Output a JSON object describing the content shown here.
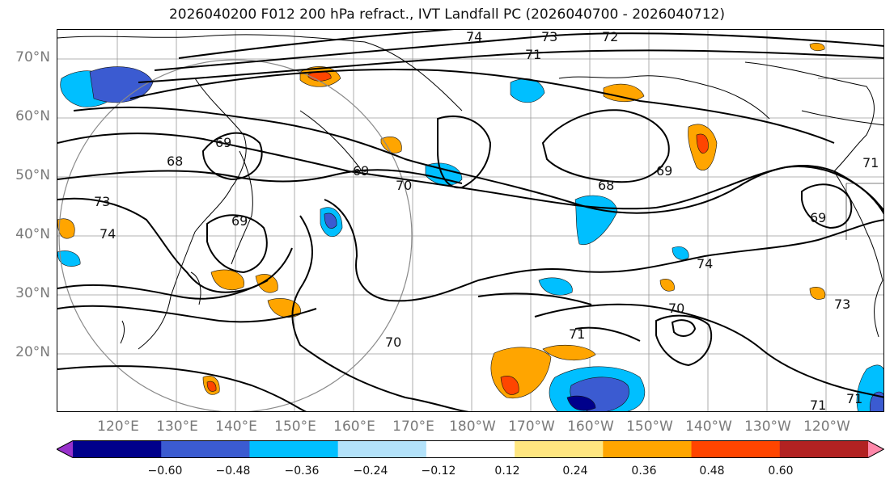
{
  "title": "2026040200 F012 200 hPa refract., IVT Landfall PC (2026040700 - 2026040712)",
  "lat_labels": [
    "70°N",
    "60°N",
    "50°N",
    "40°N",
    "30°N",
    "20°N"
  ],
  "lon_labels": [
    "120°E",
    "130°E",
    "140°E",
    "150°E",
    "160°E",
    "170°E",
    "180°W",
    "170°W",
    "160°W",
    "150°W",
    "140°W",
    "130°W",
    "120°W"
  ],
  "contour_labels": [
    "74",
    "73",
    "72",
    "71",
    "69",
    "70",
    "68",
    "69",
    "68",
    "69",
    "73",
    "74",
    "69",
    "74",
    "70",
    "71",
    "73",
    "71",
    "71",
    "70",
    "69",
    "71"
  ],
  "colorbar": {
    "ticks": [
      "−0.60",
      "−0.48",
      "−0.36",
      "−0.24",
      "−0.12",
      "0.12",
      "0.24",
      "0.36",
      "0.48",
      "0.60"
    ],
    "colors": [
      "#9932cc",
      "#00008b",
      "#3b5bd1",
      "#00bfff",
      "#b3e2fa",
      "#ffffff",
      "#ffe680",
      "#ffa500",
      "#ff4500",
      "#b22222",
      "#ff88aa"
    ]
  }
}
